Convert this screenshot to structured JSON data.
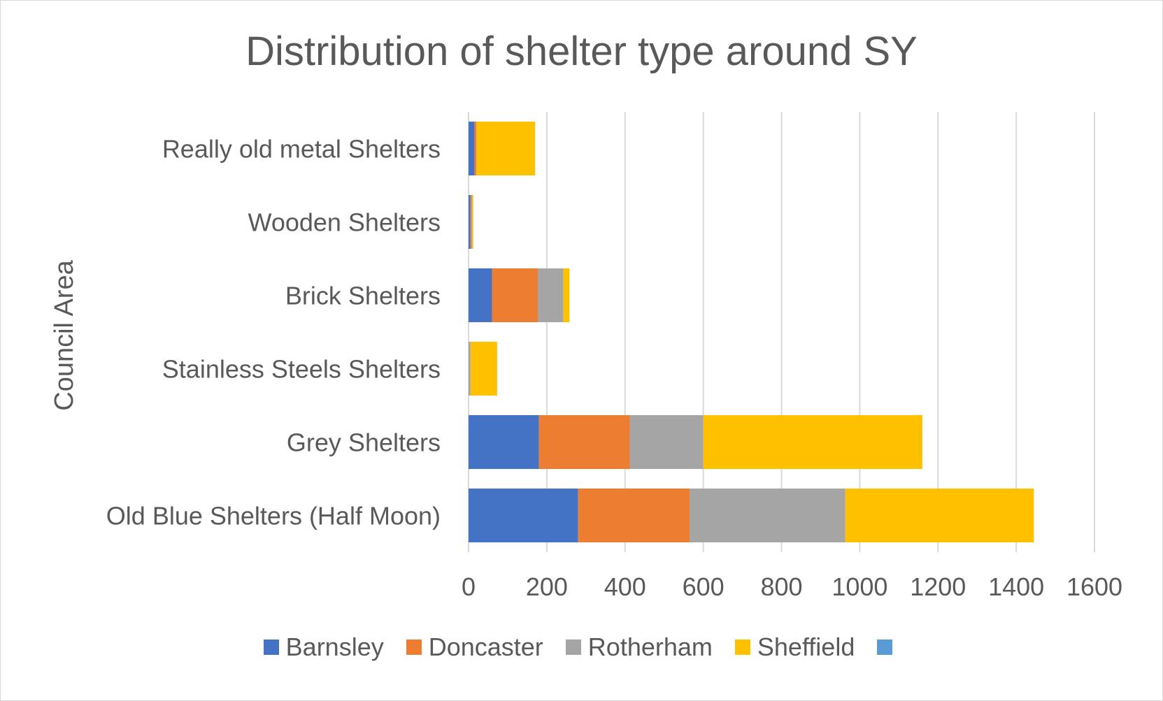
{
  "colors": {
    "Barnsley": "#4472c4",
    "Doncaster": "#ed7d31",
    "Rotherham": "#a5a5a5",
    "Sheffield": "#ffc000",
    "Unnamed": "#5b9bd5",
    "gridline": "#d9d9d9",
    "text": "#595959"
  },
  "chart_data": {
    "type": "bar",
    "orientation": "horizontal",
    "stacked": true,
    "title": "Distribution of shelter type around SY",
    "ylabel": "Council Area",
    "xlabel": "",
    "xlim": [
      0,
      1600
    ],
    "xticks": [
      "0",
      "200",
      "400",
      "600",
      "800",
      "1000",
      "1200",
      "1400",
      "1600"
    ],
    "grid": "vertical gridlines",
    "legend_position": "bottom",
    "categories": [
      "Old Blue Shelters (Half Moon)",
      "Grey Shelters",
      "Stainless Steels Shelters",
      "Brick Shelters",
      "Wooden Shelters",
      "Really old metal Shelters"
    ],
    "series": [
      {
        "name": "Barnsley",
        "values": [
          280,
          180,
          0,
          60,
          5,
          15
        ]
      },
      {
        "name": "Doncaster",
        "values": [
          285,
          232,
          0,
          117,
          2,
          5
        ]
      },
      {
        "name": "Rotherham",
        "values": [
          398,
          188,
          5,
          65,
          2,
          0
        ]
      },
      {
        "name": "Sheffield",
        "values": [
          482,
          560,
          68,
          16,
          3,
          150
        ]
      },
      {
        "name": "",
        "values": [
          0,
          0,
          0,
          0,
          0,
          0
        ]
      }
    ]
  }
}
